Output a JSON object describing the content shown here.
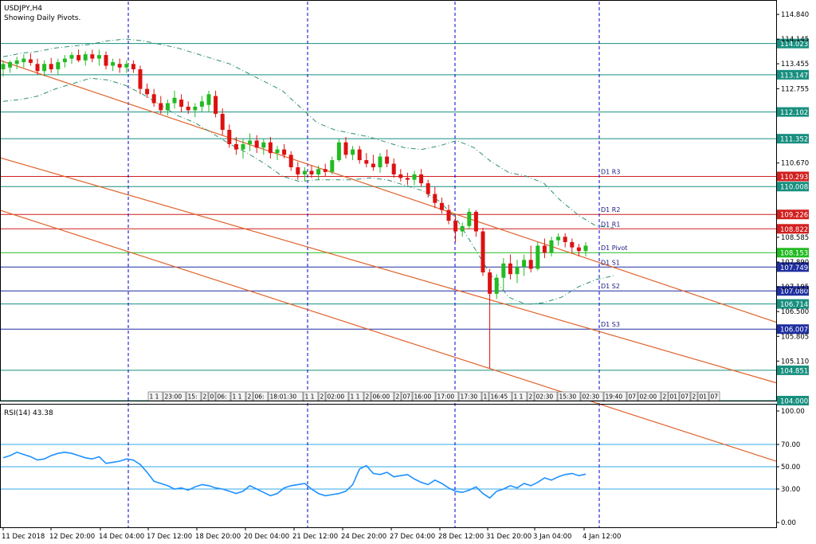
{
  "header": {
    "symbol_line": "USDJPY,H4",
    "subtitle": "Showing Daily Pivots."
  },
  "colors": {
    "background": "#ffffff",
    "grid_dash": "#0000cc",
    "bull": "#22bb22",
    "bear": "#dd1111",
    "trend_line": "#e0622a",
    "band": "#2f8f6f",
    "resistance": "#d11f1f",
    "support": "#1f2fa0",
    "teal": "#188f7f",
    "rsi_line": "#1e90ff",
    "rsi_level": "#33a8e8"
  },
  "chart_data": [
    {
      "type": "candlestick",
      "title": "USDJPY,H4",
      "subtitle": "Showing Daily Pivots.",
      "x_tick_labels": [
        "11 Dec 2018",
        "12 Dec 20:00",
        "14 Dec 04:00",
        "17 Dec 12:00",
        "18 Dec 20:00",
        "20 Dec 04:00",
        "21 Dec 12:00",
        "24 Dec 20:00",
        "27 Dec 04:00",
        "28 Dec 12:00",
        "31 Dec 20:00",
        "3 Jan 04:00",
        "4 Jan 12:00"
      ],
      "y_tick_labels": [
        "114.840",
        "114.145",
        "113.455",
        "112.755",
        "110.670",
        "108.585",
        "107.890",
        "107.195",
        "106.500",
        "105.805",
        "105.110"
      ],
      "ylim": [
        104.0,
        115.2
      ],
      "price_tags": [
        {
          "label": "114.023",
          "value": 114.023,
          "kind": "teal"
        },
        {
          "label": "113.147",
          "value": 113.147,
          "kind": "teal"
        },
        {
          "label": "112.102",
          "value": 112.102,
          "kind": "teal"
        },
        {
          "label": "111.352",
          "value": 111.352,
          "kind": "teal"
        },
        {
          "label": "110.293",
          "value": 110.293,
          "kind": "resistance"
        },
        {
          "label": "110.008",
          "value": 110.008,
          "kind": "teal"
        },
        {
          "label": "109.226",
          "value": 109.226,
          "kind": "resistance"
        },
        {
          "label": "108.822",
          "value": 108.822,
          "kind": "resistance"
        },
        {
          "label": "108.153",
          "value": 108.153,
          "kind": "current"
        },
        {
          "label": "107.749",
          "value": 107.749,
          "kind": "support"
        },
        {
          "label": "107.080",
          "value": 107.08,
          "kind": "support"
        },
        {
          "label": "106.714",
          "value": 106.714,
          "kind": "teal"
        },
        {
          "label": "106.007",
          "value": 106.007,
          "kind": "support"
        },
        {
          "label": "104.851",
          "value": 104.851,
          "kind": "teal"
        },
        {
          "label": "104.000",
          "value": 104.0,
          "kind": "teal"
        }
      ],
      "pivot_labels": [
        {
          "label": "D1  R3",
          "value": 110.293
        },
        {
          "label": "D1  R2",
          "value": 109.226
        },
        {
          "label": "D1  R1",
          "value": 108.822
        },
        {
          "label": "D1  Pivot",
          "value": 108.153
        },
        {
          "label": "D1  S1",
          "value": 107.749
        },
        {
          "label": "D1  S2",
          "value": 107.08
        },
        {
          "label": "D1  S3",
          "value": 106.007
        }
      ],
      "session_labels": [
        "1 1",
        "23:00",
        "15:",
        "2",
        "0",
        "06:",
        "1 1",
        "2",
        "06:",
        "18:01:30",
        "1 1",
        "2",
        "02:00",
        "1 1",
        "2",
        "06:00",
        "2",
        "07",
        "16:00",
        "17:00",
        "17:30",
        "1",
        "16:45",
        "1 1",
        "2",
        "02:30",
        "15:30",
        "02:30",
        "19:40",
        "07",
        "02:00",
        "2",
        "01",
        "07",
        "2",
        "01",
        "07"
      ],
      "candles": [
        {
          "o": 113.3,
          "h": 113.55,
          "l": 113.1,
          "c": 113.45
        },
        {
          "o": 113.35,
          "h": 113.55,
          "l": 113.2,
          "c": 113.5
        },
        {
          "o": 113.45,
          "h": 113.65,
          "l": 113.3,
          "c": 113.55
        },
        {
          "o": 113.5,
          "h": 113.72,
          "l": 113.35,
          "c": 113.6
        },
        {
          "o": 113.58,
          "h": 113.75,
          "l": 113.4,
          "c": 113.48
        },
        {
          "o": 113.45,
          "h": 113.6,
          "l": 113.15,
          "c": 113.25
        },
        {
          "o": 113.25,
          "h": 113.55,
          "l": 113.1,
          "c": 113.45
        },
        {
          "o": 113.45,
          "h": 113.62,
          "l": 113.2,
          "c": 113.3
        },
        {
          "o": 113.3,
          "h": 113.6,
          "l": 113.15,
          "c": 113.5
        },
        {
          "o": 113.5,
          "h": 113.7,
          "l": 113.35,
          "c": 113.6
        },
        {
          "o": 113.6,
          "h": 113.78,
          "l": 113.45,
          "c": 113.7
        },
        {
          "o": 113.7,
          "h": 113.85,
          "l": 113.5,
          "c": 113.55
        },
        {
          "o": 113.55,
          "h": 113.8,
          "l": 113.4,
          "c": 113.72
        },
        {
          "o": 113.72,
          "h": 113.85,
          "l": 113.5,
          "c": 113.6
        },
        {
          "o": 113.6,
          "h": 113.85,
          "l": 113.4,
          "c": 113.7
        },
        {
          "o": 113.7,
          "h": 113.8,
          "l": 113.3,
          "c": 113.4
        },
        {
          "o": 113.4,
          "h": 113.6,
          "l": 113.25,
          "c": 113.5
        },
        {
          "o": 113.45,
          "h": 113.6,
          "l": 113.2,
          "c": 113.35
        },
        {
          "o": 113.35,
          "h": 113.55,
          "l": 113.2,
          "c": 113.45
        },
        {
          "o": 113.45,
          "h": 113.55,
          "l": 113.2,
          "c": 113.3
        },
        {
          "o": 113.3,
          "h": 113.4,
          "l": 112.6,
          "c": 112.75
        },
        {
          "o": 112.75,
          "h": 112.9,
          "l": 112.5,
          "c": 112.6
        },
        {
          "o": 112.6,
          "h": 112.75,
          "l": 112.25,
          "c": 112.35
        },
        {
          "o": 112.35,
          "h": 112.55,
          "l": 112.05,
          "c": 112.15
        },
        {
          "o": 112.15,
          "h": 112.45,
          "l": 112.0,
          "c": 112.35
        },
        {
          "o": 112.35,
          "h": 112.7,
          "l": 112.2,
          "c": 112.5
        },
        {
          "o": 112.45,
          "h": 112.6,
          "l": 112.1,
          "c": 112.25
        },
        {
          "o": 112.25,
          "h": 112.4,
          "l": 112.05,
          "c": 112.15
        },
        {
          "o": 112.15,
          "h": 112.35,
          "l": 111.95,
          "c": 112.25
        },
        {
          "o": 112.25,
          "h": 112.55,
          "l": 112.1,
          "c": 112.4
        },
        {
          "o": 112.3,
          "h": 112.7,
          "l": 112.1,
          "c": 112.6
        },
        {
          "o": 112.55,
          "h": 112.7,
          "l": 111.95,
          "c": 112.05
        },
        {
          "o": 112.05,
          "h": 112.2,
          "l": 111.45,
          "c": 111.6
        },
        {
          "o": 111.6,
          "h": 111.75,
          "l": 111.1,
          "c": 111.2
        },
        {
          "o": 111.2,
          "h": 111.4,
          "l": 110.9,
          "c": 111.05
        },
        {
          "o": 111.05,
          "h": 111.35,
          "l": 110.8,
          "c": 111.2
        },
        {
          "o": 111.2,
          "h": 111.5,
          "l": 111.0,
          "c": 111.3
        },
        {
          "o": 111.3,
          "h": 111.45,
          "l": 110.95,
          "c": 111.1
        },
        {
          "o": 111.1,
          "h": 111.35,
          "l": 110.9,
          "c": 111.25
        },
        {
          "o": 111.25,
          "h": 111.4,
          "l": 110.8,
          "c": 110.95
        },
        {
          "o": 110.95,
          "h": 111.15,
          "l": 110.75,
          "c": 111.05
        },
        {
          "o": 111.05,
          "h": 111.2,
          "l": 110.8,
          "c": 110.9
        },
        {
          "o": 110.9,
          "h": 111.0,
          "l": 110.45,
          "c": 110.55
        },
        {
          "o": 110.55,
          "h": 110.7,
          "l": 110.2,
          "c": 110.35
        },
        {
          "o": 110.35,
          "h": 110.55,
          "l": 110.15,
          "c": 110.45
        },
        {
          "o": 110.45,
          "h": 110.6,
          "l": 110.25,
          "c": 110.35
        },
        {
          "o": 110.35,
          "h": 110.6,
          "l": 110.2,
          "c": 110.5
        },
        {
          "o": 110.5,
          "h": 110.65,
          "l": 110.3,
          "c": 110.42
        },
        {
          "o": 110.42,
          "h": 110.85,
          "l": 110.35,
          "c": 110.75
        },
        {
          "o": 110.75,
          "h": 111.35,
          "l": 110.7,
          "c": 111.25
        },
        {
          "o": 111.25,
          "h": 111.4,
          "l": 110.8,
          "c": 110.9
        },
        {
          "o": 110.9,
          "h": 111.15,
          "l": 110.75,
          "c": 111.05
        },
        {
          "o": 111.05,
          "h": 111.15,
          "l": 110.65,
          "c": 110.75
        },
        {
          "o": 110.75,
          "h": 110.95,
          "l": 110.55,
          "c": 110.65
        },
        {
          "o": 110.65,
          "h": 110.9,
          "l": 110.45,
          "c": 110.55
        },
        {
          "o": 110.55,
          "h": 110.95,
          "l": 110.4,
          "c": 110.85
        },
        {
          "o": 110.85,
          "h": 111.05,
          "l": 110.55,
          "c": 110.65
        },
        {
          "o": 110.65,
          "h": 110.8,
          "l": 110.25,
          "c": 110.35
        },
        {
          "o": 110.35,
          "h": 110.5,
          "l": 110.15,
          "c": 110.25
        },
        {
          "o": 110.25,
          "h": 110.4,
          "l": 110.05,
          "c": 110.2
        },
        {
          "o": 110.2,
          "h": 110.45,
          "l": 110.05,
          "c": 110.35
        },
        {
          "o": 110.35,
          "h": 110.5,
          "l": 110.0,
          "c": 110.1
        },
        {
          "o": 110.1,
          "h": 110.2,
          "l": 109.7,
          "c": 109.8
        },
        {
          "o": 109.8,
          "h": 110.0,
          "l": 109.4,
          "c": 109.55
        },
        {
          "o": 109.55,
          "h": 109.7,
          "l": 109.25,
          "c": 109.35
        },
        {
          "o": 109.35,
          "h": 109.5,
          "l": 108.95,
          "c": 109.05
        },
        {
          "o": 109.05,
          "h": 109.2,
          "l": 108.45,
          "c": 108.75
        },
        {
          "o": 108.75,
          "h": 109.0,
          "l": 108.6,
          "c": 108.9
        },
        {
          "o": 108.9,
          "h": 109.4,
          "l": 108.8,
          "c": 109.3
        },
        {
          "o": 109.3,
          "h": 109.35,
          "l": 108.6,
          "c": 108.75
        },
        {
          "o": 108.75,
          "h": 108.85,
          "l": 107.5,
          "c": 107.6
        },
        {
          "o": 107.6,
          "h": 107.7,
          "l": 104.9,
          "c": 107.0
        },
        {
          "o": 107.0,
          "h": 107.55,
          "l": 106.85,
          "c": 107.45
        },
        {
          "o": 107.45,
          "h": 108.0,
          "l": 107.1,
          "c": 107.85
        },
        {
          "o": 107.85,
          "h": 108.1,
          "l": 107.4,
          "c": 107.55
        },
        {
          "o": 107.55,
          "h": 107.95,
          "l": 107.3,
          "c": 107.75
        },
        {
          "o": 107.75,
          "h": 108.1,
          "l": 107.5,
          "c": 107.95
        },
        {
          "o": 107.95,
          "h": 108.35,
          "l": 107.6,
          "c": 107.7
        },
        {
          "o": 107.7,
          "h": 108.45,
          "l": 107.65,
          "c": 108.35
        },
        {
          "o": 108.35,
          "h": 108.55,
          "l": 108.0,
          "c": 108.15
        },
        {
          "o": 108.15,
          "h": 108.6,
          "l": 108.05,
          "c": 108.5
        },
        {
          "o": 108.5,
          "h": 108.7,
          "l": 108.35,
          "c": 108.6
        },
        {
          "o": 108.6,
          "h": 108.7,
          "l": 108.3,
          "c": 108.45
        },
        {
          "o": 108.45,
          "h": 108.55,
          "l": 108.15,
          "c": 108.3
        },
        {
          "o": 108.3,
          "h": 108.4,
          "l": 108.05,
          "c": 108.2
        },
        {
          "o": 108.2,
          "h": 108.45,
          "l": 108.05,
          "c": 108.35
        }
      ],
      "trend_lines": [
        {
          "x": [
            0,
            100
          ],
          "y": [
            113.55,
            106.2
          ]
        },
        {
          "x": [
            -10,
            100
          ],
          "y": [
            111.45,
            104.5
          ]
        },
        {
          "x": [
            -10,
            100
          ],
          "y": [
            110.05,
            102.3
          ]
        }
      ],
      "bands": {
        "upper": [
          113.65,
          113.75,
          113.8,
          113.9,
          113.95,
          114.0,
          114.1,
          114.15,
          114.1,
          114.0,
          113.9,
          113.75,
          113.6,
          113.45,
          113.2,
          112.95,
          112.7,
          112.25,
          111.8,
          111.6,
          111.5,
          111.4,
          111.25,
          111.1,
          111.05,
          111.15,
          111.3,
          111.1,
          110.7,
          110.4,
          110.3,
          110.1,
          109.6,
          109.2,
          108.9,
          108.85
        ],
        "lower": [
          112.4,
          112.45,
          112.55,
          112.75,
          112.9,
          113.05,
          113.0,
          112.85,
          112.6,
          112.3,
          112.0,
          111.8,
          111.5,
          111.2,
          110.95,
          110.65,
          110.3,
          110.15,
          110.2,
          110.2,
          110.2,
          110.25,
          110.2,
          110.05,
          109.9,
          109.6,
          109.1,
          108.3,
          107.5,
          106.9,
          106.7,
          106.75,
          106.9,
          107.2,
          107.4,
          107.5
        ]
      }
    },
    {
      "type": "line",
      "title": "RSI(14) 43.38",
      "ylim": [
        0,
        100
      ],
      "y_tick_labels": [
        "100.00",
        "70.00",
        "50.00",
        "30.00",
        "0.00"
      ],
      "levels": [
        70,
        50,
        30
      ],
      "series": [
        {
          "name": "RSI(14)",
          "values": [
            58,
            60,
            63,
            61,
            59,
            56,
            57,
            60,
            62,
            63,
            62,
            60,
            58,
            57,
            59,
            53,
            54,
            55,
            57,
            56,
            52,
            45,
            37,
            35,
            33,
            30,
            31,
            29,
            32,
            34,
            33,
            31,
            30,
            28,
            26,
            28,
            33,
            30,
            27,
            24,
            26,
            31,
            33,
            34,
            35,
            30,
            26,
            24,
            25,
            26,
            28,
            34,
            48,
            51,
            44,
            43,
            45,
            41,
            42,
            43,
            39,
            36,
            34,
            38,
            35,
            31,
            28,
            27,
            29,
            32,
            26,
            22,
            28,
            30,
            33,
            31,
            35,
            33,
            36,
            40,
            38,
            41,
            43,
            44,
            42,
            43.38
          ]
        }
      ]
    }
  ]
}
